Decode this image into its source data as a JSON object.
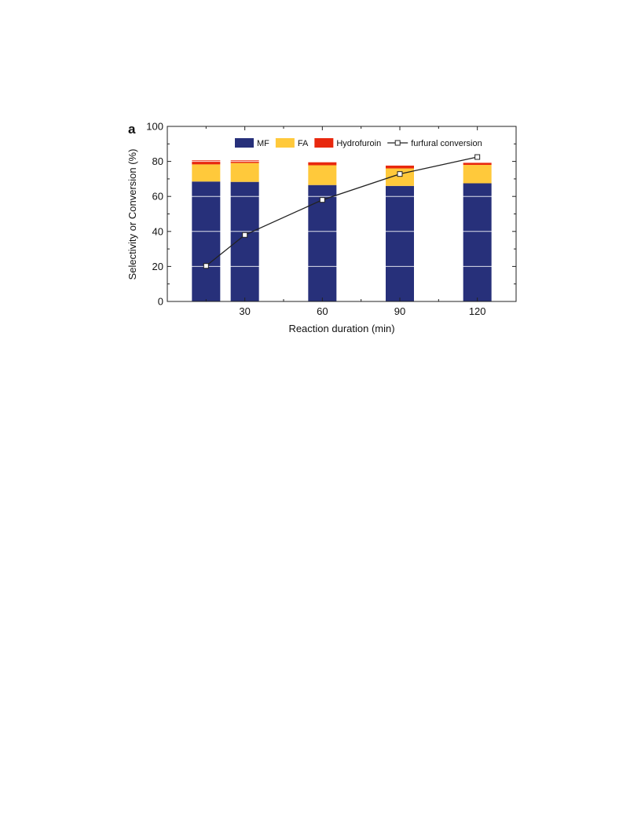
{
  "panel_label": "a",
  "chart_data": {
    "type": "bar",
    "stacked": true,
    "xlabel": "Reaction duration (min)",
    "ylabel": "Selectivity or Conversion (%)",
    "xlim": [
      0,
      135
    ],
    "ylim": [
      0,
      100
    ],
    "xticks": [
      30,
      60,
      90,
      120
    ],
    "yticks": [
      0,
      20,
      40,
      60,
      80,
      100
    ],
    "x": [
      15,
      30,
      60,
      90,
      120
    ],
    "series": [
      {
        "name": "MF",
        "kind": "bar",
        "color": "#27307a",
        "values": [
          68.5,
          68.3,
          66.5,
          66.0,
          67.5
        ]
      },
      {
        "name": "FA",
        "kind": "bar",
        "color": "#ffc93b",
        "values": [
          9.8,
          10.8,
          11.3,
          10.0,
          10.5
        ]
      },
      {
        "name": "Hydrofuroin",
        "kind": "bar",
        "color": "#e8280e",
        "values": [
          2.3,
          1.5,
          1.7,
          1.6,
          1.2
        ]
      },
      {
        "name": "furfural conversion",
        "kind": "line",
        "color": "#222222",
        "values": [
          20.3,
          38.0,
          58.0,
          72.8,
          82.5
        ]
      }
    ],
    "legend": "top",
    "grid": false
  }
}
